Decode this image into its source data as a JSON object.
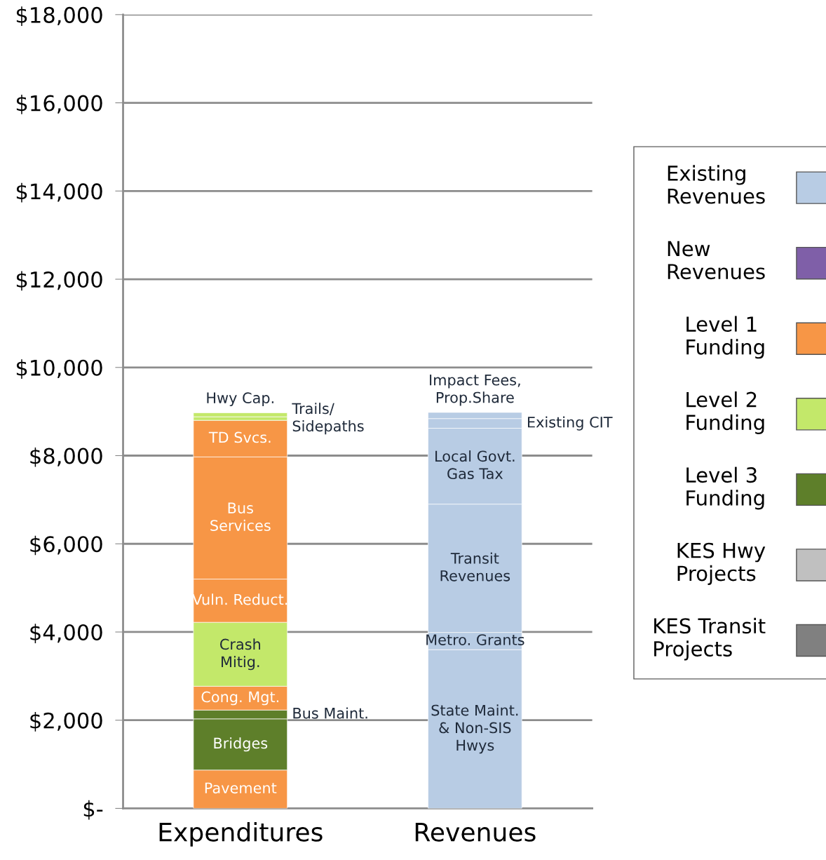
{
  "chart_data": {
    "type": "bar",
    "stacked": true,
    "categories": [
      "Expenditures",
      "Revenues"
    ],
    "series": [
      {
        "name": "Pavement",
        "color": "#f79646",
        "values": [
          870,
          null
        ]
      },
      {
        "name": "Bridges",
        "color": "#5e7f2a",
        "values": [
          1160,
          null
        ]
      },
      {
        "name": "Bus Maint.",
        "color": "#5e7f2a",
        "values": [
          200,
          null
        ]
      },
      {
        "name": "Cong. Mgt.",
        "color": "#f79646",
        "values": [
          540,
          null
        ]
      },
      {
        "name": "Crash\nMitig.",
        "color": "#c3e86a",
        "values": [
          1450,
          null
        ]
      },
      {
        "name": "Vuln. Reduct.",
        "color": "#f79646",
        "values": [
          980,
          null
        ]
      },
      {
        "name": "Bus\nServices",
        "color": "#f79646",
        "values": [
          2770,
          null
        ]
      },
      {
        "name": "TD Svcs.",
        "color": "#f79646",
        "values": [
          830,
          null
        ]
      },
      {
        "name": "Trails/\nSidepaths",
        "color": "#c3e86a",
        "values": [
          80,
          null
        ]
      },
      {
        "name": "Hwy Cap.",
        "color": "#c3e86a",
        "values": [
          90,
          null
        ]
      },
      {
        "name": "State Maint.\n& Non-SIS\nHwys",
        "color": "#b8cce4",
        "values": [
          null,
          3600
        ]
      },
      {
        "name": "Metro. Grants",
        "color": "#b8cce4",
        "values": [
          null,
          390
        ]
      },
      {
        "name": "Transit\nRevenues",
        "color": "#b8cce4",
        "values": [
          null,
          2910
        ]
      },
      {
        "name": "Local Govt.\nGas Tax",
        "color": "#b8cce4",
        "values": [
          null,
          1720
        ]
      },
      {
        "name": "Existing CIT",
        "color": "#b8cce4",
        "values": [
          null,
          220
        ]
      },
      {
        "name": "Impact Fees,\nProp.Share",
        "color": "#b8cce4",
        "values": [
          null,
          140
        ]
      },
      {
        "name": "Existing\nRevenues",
        "color": "#b8cce4",
        "values": [
          null,
          null
        ]
      },
      {
        "name": "New\nRevenues",
        "color": "#7f5fa8",
        "values": [
          null,
          null
        ]
      },
      {
        "name": "Level 1\nFunding",
        "color": "#f79646",
        "values": [
          null,
          null
        ]
      },
      {
        "name": "Level 2\nFunding",
        "color": "#c3e86a",
        "values": [
          null,
          null
        ]
      },
      {
        "name": "Level 3\nFunding",
        "color": "#5e7f2a",
        "values": [
          null,
          null
        ]
      },
      {
        "name": "KES Hwy\nProjects",
        "color": "#c0c0c0",
        "values": [
          null,
          null
        ]
      },
      {
        "name": "KES Transit\nProjects",
        "color": "#808080",
        "values": [
          null,
          null
        ]
      }
    ],
    "ylim": [
      0,
      18000
    ],
    "yticks": [
      {
        "value": 0,
        "label": "$-"
      },
      {
        "value": 2000,
        "label": "$2,000"
      },
      {
        "value": 4000,
        "label": "$4,000"
      },
      {
        "value": 6000,
        "label": "$6,000"
      },
      {
        "value": 8000,
        "label": "$8,000"
      },
      {
        "value": 10000,
        "label": "$10,000"
      },
      {
        "value": 12000,
        "label": "$12,000"
      },
      {
        "value": 14000,
        "label": "$14,000"
      },
      {
        "value": 16000,
        "label": "$16,000"
      },
      {
        "value": 18000,
        "label": "$18,000"
      }
    ],
    "grid": "y",
    "legend": "right"
  }
}
